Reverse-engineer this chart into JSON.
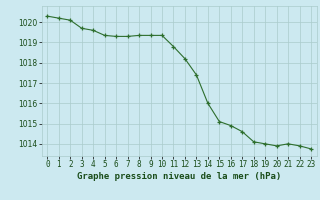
{
  "hours": [
    0,
    1,
    2,
    3,
    4,
    5,
    6,
    7,
    8,
    9,
    10,
    11,
    12,
    13,
    14,
    15,
    16,
    17,
    18,
    19,
    20,
    21,
    22,
    23
  ],
  "pressure": [
    1020.3,
    1020.2,
    1020.1,
    1019.7,
    1019.6,
    1019.35,
    1019.3,
    1019.3,
    1019.35,
    1019.35,
    1019.35,
    1018.8,
    1018.2,
    1017.4,
    1016.0,
    1015.1,
    1014.9,
    1014.6,
    1014.1,
    1014.0,
    1013.9,
    1014.0,
    1013.9,
    1013.75
  ],
  "line_color": "#2d6e2d",
  "marker": "+",
  "bg_color": "#cce9f0",
  "grid_color": "#aacccc",
  "xlabel": "Graphe pression niveau de la mer (hPa)",
  "xlabel_color": "#1a4d1a",
  "tick_color": "#1a4d1a",
  "ylabel_ticks": [
    1014,
    1015,
    1016,
    1017,
    1018,
    1019,
    1020
  ],
  "ylim": [
    1013.4,
    1020.8
  ],
  "xlim": [
    -0.5,
    23.5
  ],
  "tick_fontsize": 5.5,
  "xlabel_fontsize": 6.5,
  "ylabel_fontsize": 5.5
}
